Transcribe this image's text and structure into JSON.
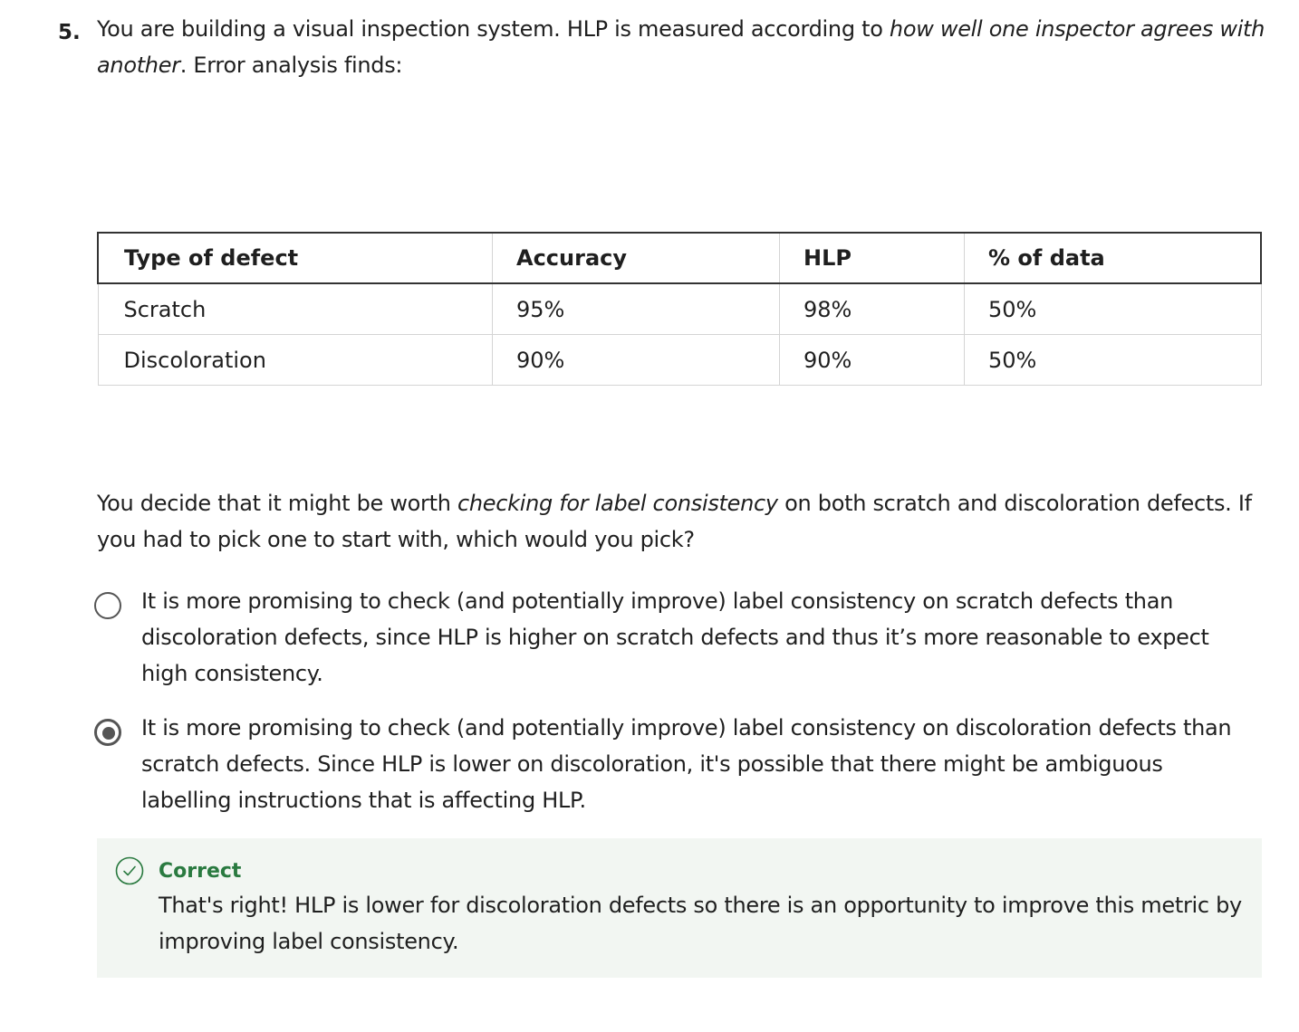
{
  "question": {
    "number": "5.",
    "text_start": "You are building a visual inspection system. HLP is measured according to ",
    "text_emphasis": "how well one inspector agrees with another",
    "text_end": ". Error analysis finds:"
  },
  "table": {
    "headers": [
      "Type of defect",
      "Accuracy",
      "HLP",
      "% of data"
    ],
    "rows": [
      [
        "Scratch",
        "95%",
        "98%",
        "50%"
      ],
      [
        "Discoloration",
        "90%",
        "90%",
        "50%"
      ]
    ]
  },
  "prompt": {
    "text_start": "You decide that it might be worth ",
    "text_emphasis": "checking for label consistency",
    "text_end": " on both scratch and discoloration defects. If you had to pick one to start with, which would you pick?"
  },
  "options": [
    {
      "text": "It is more promising to check (and potentially improve) label consistency on scratch defects than discoloration defects, since HLP is higher on scratch defects and thus it’s more reasonable to expect high consistency.",
      "selected": false
    },
    {
      "text": "It is more promising to check (and potentially improve) label consistency on discoloration defects than scratch defects. Since HLP is lower on discoloration, it's possible that there might be ambiguous labelling instructions that is affecting HLP.",
      "selected": true
    }
  ],
  "feedback": {
    "status": "Correct",
    "text": "That's right! HLP is lower for discoloration defects so there is an opportunity to improve this metric by improving label consistency.",
    "icon": "check-circle-icon",
    "color": "#2a7a40",
    "background": "#f2f6f2"
  }
}
